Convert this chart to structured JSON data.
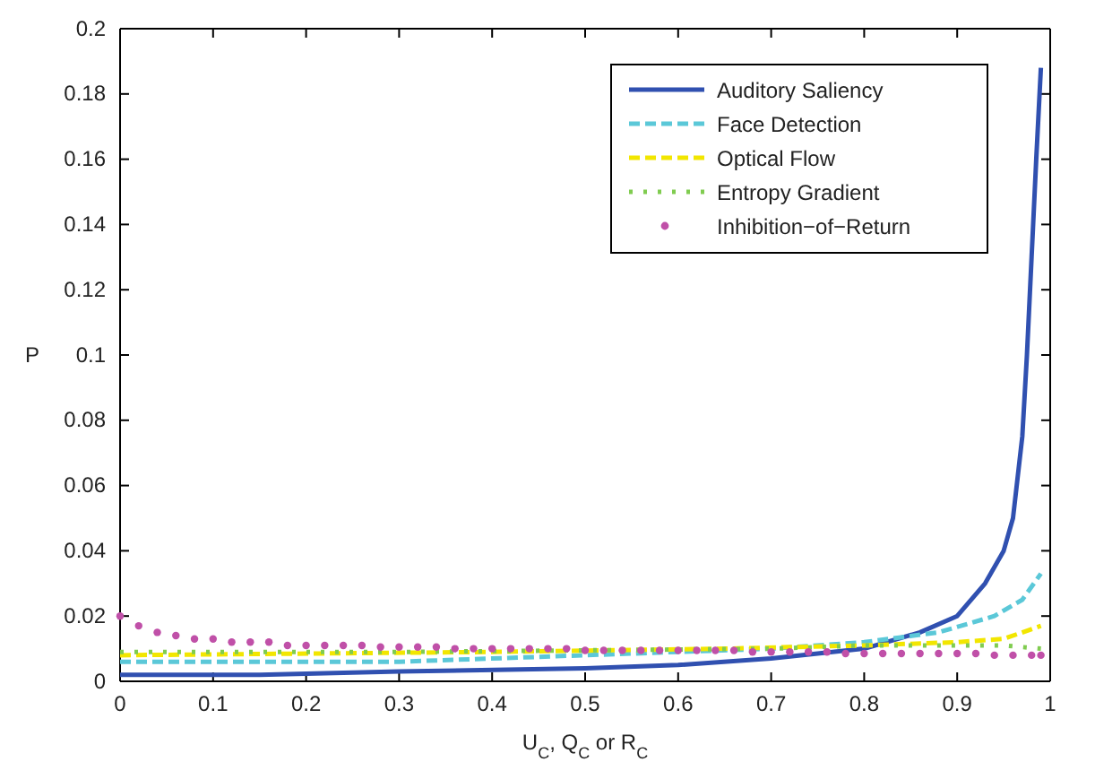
{
  "chart_data": {
    "type": "line",
    "xlabel": "U$_{C}$, Q$_{C}$ or R$_{C}$",
    "ylabel": "P",
    "xlim": [
      0,
      1
    ],
    "ylim": [
      0,
      0.2
    ],
    "xticks": [
      0,
      0.1,
      0.2,
      0.3,
      0.4,
      0.5,
      0.6,
      0.7,
      0.8,
      0.9,
      1
    ],
    "yticks": [
      0,
      0.02,
      0.04,
      0.06,
      0.08,
      0.1,
      0.12,
      0.14,
      0.16,
      0.18,
      0.2
    ],
    "grid": false,
    "legend": "top right",
    "series": [
      {
        "name": "Auditory Saliency",
        "color": "#3050b0",
        "line_style": "solid",
        "x": [
          0,
          0.15,
          0.3,
          0.5,
          0.6,
          0.7,
          0.8,
          0.86,
          0.9,
          0.93,
          0.95,
          0.96,
          0.97,
          0.975,
          0.98,
          0.985,
          0.99
        ],
        "values": [
          0.002,
          0.002,
          0.003,
          0.004,
          0.005,
          0.007,
          0.01,
          0.015,
          0.02,
          0.03,
          0.04,
          0.05,
          0.075,
          0.1,
          0.13,
          0.16,
          0.188
        ]
      },
      {
        "name": "Face Detection",
        "color": "#5bc8d8",
        "line_style": "dashed",
        "x": [
          0,
          0.3,
          0.4,
          0.6,
          0.7,
          0.8,
          0.88,
          0.94,
          0.97,
          0.99
        ],
        "values": [
          0.006,
          0.006,
          0.007,
          0.009,
          0.01,
          0.012,
          0.015,
          0.02,
          0.025,
          0.033
        ]
      },
      {
        "name": "Optical Flow",
        "color": "#f2e600",
        "line_style": "dashed",
        "x": [
          0,
          0.4,
          0.65,
          0.8,
          0.9,
          0.95,
          0.99
        ],
        "values": [
          0.008,
          0.009,
          0.01,
          0.011,
          0.012,
          0.013,
          0.017
        ]
      },
      {
        "name": "Entropy Gradient",
        "color": "#80cc50",
        "line_style": "dotted",
        "x": [
          0,
          0.3,
          0.7,
          0.8,
          0.95,
          0.99
        ],
        "values": [
          0.009,
          0.009,
          0.01,
          0.011,
          0.011,
          0.01
        ]
      },
      {
        "name": "Inhibition−of−Return",
        "color": "#c050a8",
        "type": "scatter",
        "marker": "circle",
        "x": [
          0,
          0.02,
          0.04,
          0.06,
          0.08,
          0.1,
          0.12,
          0.14,
          0.16,
          0.18,
          0.2,
          0.22,
          0.24,
          0.26,
          0.28,
          0.3,
          0.32,
          0.34,
          0.36,
          0.38,
          0.4,
          0.42,
          0.44,
          0.46,
          0.48,
          0.5,
          0.52,
          0.54,
          0.56,
          0.58,
          0.6,
          0.62,
          0.64,
          0.66,
          0.68,
          0.7,
          0.72,
          0.74,
          0.76,
          0.78,
          0.8,
          0.82,
          0.84,
          0.86,
          0.88,
          0.9,
          0.92,
          0.94,
          0.96,
          0.98,
          0.99
        ],
        "values": [
          0.02,
          0.017,
          0.015,
          0.014,
          0.013,
          0.013,
          0.012,
          0.012,
          0.012,
          0.011,
          0.011,
          0.011,
          0.011,
          0.011,
          0.0105,
          0.0105,
          0.0105,
          0.0105,
          0.01,
          0.01,
          0.01,
          0.01,
          0.01,
          0.01,
          0.01,
          0.0095,
          0.0095,
          0.0095,
          0.0095,
          0.0095,
          0.0095,
          0.0095,
          0.0095,
          0.0095,
          0.009,
          0.009,
          0.009,
          0.009,
          0.009,
          0.0085,
          0.0085,
          0.0085,
          0.0085,
          0.0085,
          0.0085,
          0.0085,
          0.0085,
          0.008,
          0.008,
          0.008,
          0.008
        ]
      }
    ]
  }
}
